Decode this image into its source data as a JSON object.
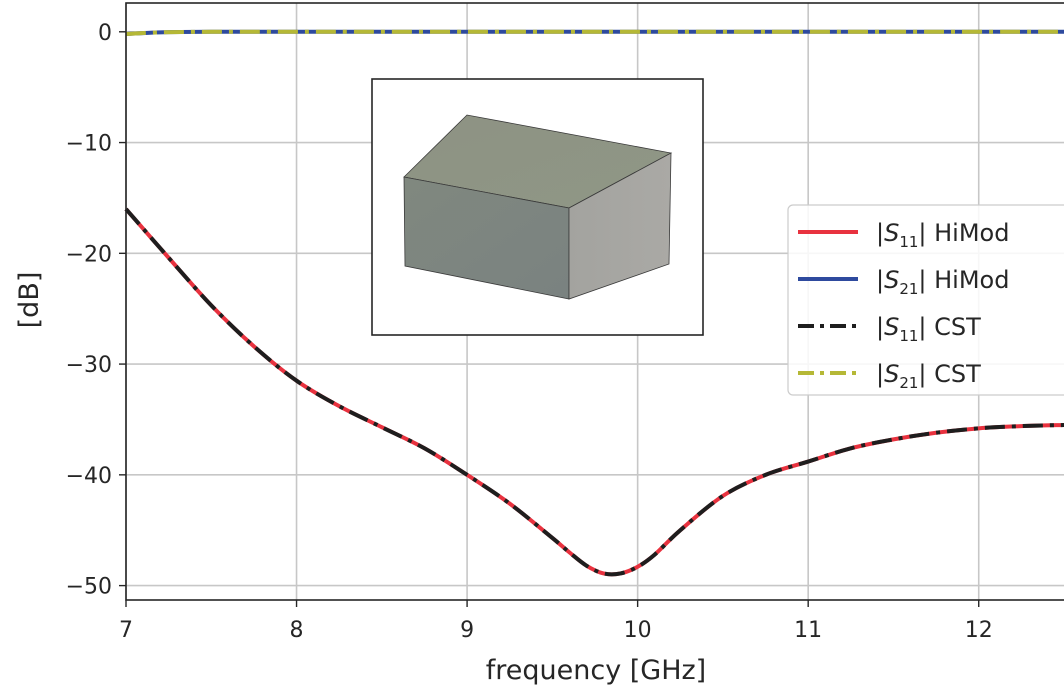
{
  "chart_data": {
    "type": "line",
    "title": "",
    "xlabel": "frequency [GHz]",
    "ylabel": "[dB]",
    "xlim": [
      7,
      12.5
    ],
    "ylim": [
      -51.3,
      2.6
    ],
    "xticks": [
      7,
      8,
      9,
      10,
      11,
      12
    ],
    "yticks": [
      0,
      -10,
      -20,
      -30,
      -40,
      -50
    ],
    "xtick_labels": [
      "7",
      "8",
      "9",
      "10",
      "11",
      "12"
    ],
    "ytick_labels": [
      "0",
      "−10",
      "−20",
      "−30",
      "−40",
      "−50"
    ],
    "grid": true,
    "legend_position": "right",
    "inset": "3d-rectangular-block",
    "series": [
      {
        "name": "|S11| HiMod",
        "label_base": "|S",
        "label_sub": "11",
        "label_rest": "| HiMod",
        "color": "#e8323f",
        "style": "solid",
        "x": [
          7.0,
          7.25,
          7.5,
          7.75,
          8.0,
          8.25,
          8.5,
          8.75,
          9.0,
          9.25,
          9.5,
          9.6,
          9.7,
          9.8,
          9.9,
          10.0,
          10.1,
          10.25,
          10.5,
          10.75,
          11.0,
          11.25,
          11.5,
          11.75,
          12.0,
          12.25,
          12.5
        ],
        "y": [
          -16.0,
          -20.4,
          -24.7,
          -28.4,
          -31.5,
          -33.8,
          -35.7,
          -37.6,
          -40.0,
          -42.6,
          -45.7,
          -47.0,
          -48.2,
          -48.9,
          -48.9,
          -48.3,
          -47.2,
          -45.0,
          -41.9,
          -40.0,
          -38.8,
          -37.6,
          -36.8,
          -36.2,
          -35.8,
          -35.6,
          -35.5
        ]
      },
      {
        "name": "|S21| HiMod",
        "label_base": "|S",
        "label_sub": "21",
        "label_rest": "| HiMod",
        "color": "#2e4a9e",
        "style": "solid",
        "x": [
          7.0,
          7.2,
          7.5,
          8.0,
          9.0,
          10.0,
          11.0,
          12.0,
          12.5
        ],
        "y": [
          -0.2,
          -0.05,
          0.0,
          0.0,
          0.0,
          0.0,
          0.0,
          0.0,
          0.0
        ]
      },
      {
        "name": "|S11| CST",
        "label_base": "|S",
        "label_sub": "11",
        "label_rest": "| CST",
        "color": "#1e1e1e",
        "style": "dashdot",
        "x": [
          7.0,
          7.25,
          7.5,
          7.75,
          8.0,
          8.25,
          8.5,
          8.75,
          9.0,
          9.25,
          9.5,
          9.6,
          9.7,
          9.8,
          9.9,
          10.0,
          10.1,
          10.25,
          10.5,
          10.75,
          11.0,
          11.25,
          11.5,
          11.75,
          12.0,
          12.25,
          12.5
        ],
        "y": [
          -16.0,
          -20.4,
          -24.7,
          -28.4,
          -31.5,
          -33.8,
          -35.7,
          -37.6,
          -40.0,
          -42.6,
          -45.7,
          -47.0,
          -48.2,
          -48.9,
          -48.9,
          -48.3,
          -47.2,
          -45.0,
          -41.9,
          -40.0,
          -38.8,
          -37.6,
          -36.8,
          -36.2,
          -35.8,
          -35.6,
          -35.5
        ]
      },
      {
        "name": "|S21| CST",
        "label_base": "|S",
        "label_sub": "21",
        "label_rest": "| CST",
        "color": "#b5b836",
        "style": "dashdot",
        "x": [
          7.0,
          7.2,
          7.5,
          8.0,
          9.0,
          10.0,
          11.0,
          12.0,
          12.5
        ],
        "y": [
          -0.2,
          -0.05,
          0.0,
          0.0,
          0.0,
          0.0,
          0.0,
          0.0,
          0.0
        ]
      }
    ]
  }
}
